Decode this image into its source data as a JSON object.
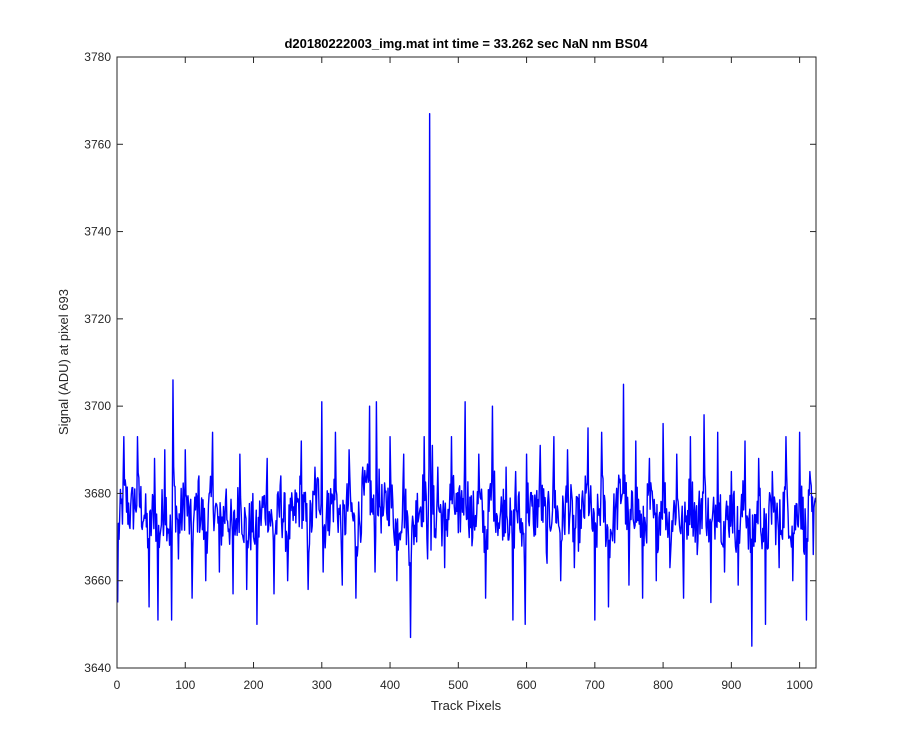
{
  "chart_data": {
    "type": "line",
    "title": "d20180222003_img.mat int time = 33.262 sec  NaN nm BS04",
    "xlabel": "Track Pixels",
    "ylabel": "Signal (ADU) at pixel 693",
    "xlim": [
      0,
      1024
    ],
    "ylim": [
      3640,
      3780
    ],
    "xticks": [
      0,
      100,
      200,
      300,
      400,
      500,
      600,
      700,
      800,
      900,
      1000
    ],
    "yticks": [
      3640,
      3660,
      3680,
      3700,
      3720,
      3740,
      3760,
      3780
    ],
    "grid": false,
    "line_color": "#0000ff",
    "points_x": [
      1,
      10,
      20,
      30,
      40,
      47,
      55,
      60,
      70,
      80,
      82,
      90,
      100,
      110,
      116,
      120,
      130,
      140,
      150,
      160,
      170,
      180,
      190,
      200,
      205,
      210,
      220,
      230,
      240,
      250,
      260,
      270,
      280,
      290,
      300,
      302,
      310,
      320,
      330,
      340,
      350,
      360,
      370,
      378,
      380,
      390,
      400,
      410,
      420,
      430,
      440,
      450,
      455,
      458,
      460,
      462,
      465,
      470,
      480,
      490,
      500,
      510,
      520,
      530,
      540,
      550,
      560,
      570,
      580,
      584,
      590,
      598,
      600,
      610,
      620,
      630,
      640,
      650,
      660,
      670,
      680,
      690,
      700,
      710,
      720,
      730,
      742,
      750,
      760,
      770,
      780,
      790,
      800,
      810,
      820,
      830,
      840,
      850,
      860,
      870,
      880,
      890,
      900,
      910,
      920,
      930,
      940,
      950,
      960,
      970,
      980,
      990,
      1000,
      1010,
      1015,
      1020,
      1024
    ],
    "points_y": [
      3655,
      3693,
      3677,
      3693,
      3675,
      3654,
      3688,
      3651,
      3690,
      3651,
      3706,
      3665,
      3690,
      3656,
      3680,
      3684,
      3660,
      3694,
      3662,
      3681,
      3657,
      3689,
      3658,
      3670,
      3650,
      3676,
      3688,
      3657,
      3684,
      3660,
      3675,
      3692,
      3658,
      3686,
      3701,
      3662,
      3680,
      3694,
      3659,
      3690,
      3656,
      3686,
      3700,
      3662,
      3701,
      3675,
      3693,
      3660,
      3689,
      3647,
      3680,
      3693,
      3665,
      3767,
      3667,
      3691,
      3670,
      3686,
      3663,
      3693,
      3671,
      3701,
      3668,
      3689,
      3656,
      3700,
      3672,
      3686,
      3651,
      3685,
      3672,
      3650,
      3689,
      3673,
      3691,
      3664,
      3693,
      3660,
      3690,
      3663,
      3672,
      3695,
      3651,
      3694,
      3654,
      3676,
      3705,
      3659,
      3692,
      3656,
      3688,
      3660,
      3696,
      3663,
      3689,
      3656,
      3693,
      3666,
      3698,
      3655,
      3694,
      3662,
      3685,
      3659,
      3692,
      3645,
      3688,
      3650,
      3685,
      3663,
      3693,
      3660,
      3694,
      3651,
      3685,
      3666,
      3678
    ]
  }
}
